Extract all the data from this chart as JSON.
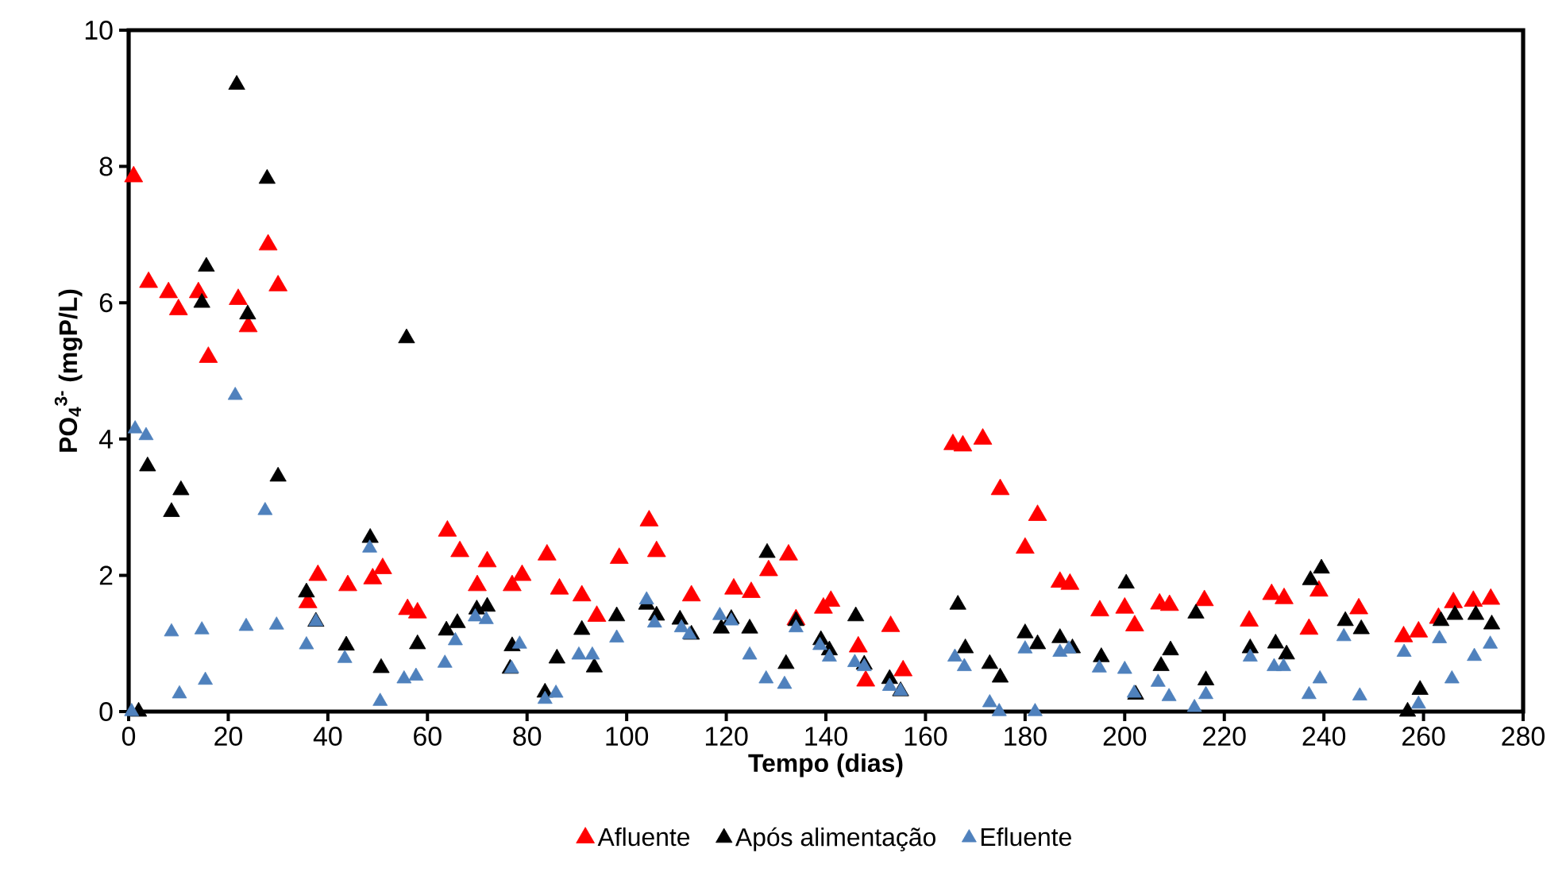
{
  "chart_data": {
    "type": "scatter",
    "xlabel": "Tempo (dias)",
    "ylabel": "PO$_{4}$$^{3-}$ (mgP/L)",
    "xlim": [
      0,
      280
    ],
    "ylim": [
      0,
      10
    ],
    "xticks": [
      0,
      20,
      40,
      60,
      80,
      100,
      120,
      140,
      160,
      180,
      200,
      220,
      240,
      260,
      280
    ],
    "yticks": [
      0,
      2,
      4,
      6,
      8,
      10
    ],
    "marker": "triangle",
    "legend": "bottom",
    "grid": false,
    "series": [
      {
        "name": "Afluente",
        "color": "#ff0000",
        "x": [
          1,
          4,
          8,
          10,
          14,
          16,
          22,
          24,
          28,
          30,
          36,
          38,
          44,
          49,
          51,
          56,
          58,
          64,
          66.5,
          70,
          72,
          77,
          79,
          84,
          86.5,
          91,
          94,
          98.5,
          104.5,
          106,
          113,
          121.5,
          125,
          128.5,
          132.5,
          134,
          139.5,
          141,
          146.5,
          148,
          153,
          155.5,
          165.5,
          167.5,
          171.5,
          175,
          180,
          182.5,
          187,
          189,
          195,
          200,
          202,
          207,
          209,
          216,
          225,
          229.5,
          232,
          237,
          239,
          247,
          256,
          259,
          263,
          266,
          270,
          273.5
        ],
        "values": [
          7.85,
          6.3,
          6.15,
          5.9,
          6.15,
          5.2,
          6.05,
          5.65,
          6.85,
          6.25,
          1.6,
          2.0,
          1.85,
          1.95,
          2.1,
          1.5,
          1.45,
          2.65,
          2.35,
          1.85,
          2.2,
          1.85,
          2.0,
          2.3,
          1.8,
          1.7,
          1.4,
          2.25,
          2.8,
          2.35,
          1.7,
          1.8,
          1.75,
          2.07,
          2.3,
          1.35,
          1.52,
          1.62,
          0.95,
          0.45,
          1.25,
          0.6,
          3.92,
          3.9,
          4.0,
          3.26,
          2.4,
          2.88,
          1.9,
          1.87,
          1.48,
          1.52,
          1.26,
          1.58,
          1.56,
          1.63,
          1.33,
          1.72,
          1.66,
          1.21,
          1.77,
          1.51,
          1.1,
          1.17,
          1.37,
          1.6,
          1.62,
          1.65
        ]
      },
      {
        "name": "Após alimentação",
        "color": "#000000",
        "x": [
          2,
          3.8,
          8.6,
          10.5,
          14.7,
          15.6,
          21.7,
          23.9,
          27.8,
          30,
          35.7,
          37.6,
          43.7,
          48.5,
          50.7,
          55.8,
          58,
          63.8,
          66,
          69.9,
          72,
          76.6,
          77,
          83.6,
          86,
          91,
          93.5,
          98,
          104,
          106,
          110.7,
          113,
          119,
          121,
          124.7,
          128.2,
          132,
          134,
          139,
          140.7,
          146,
          147.7,
          152.8,
          155,
          166.5,
          168,
          172.9,
          175,
          180,
          182.5,
          187,
          189.5,
          195.3,
          200.3,
          202.2,
          207.3,
          209.2,
          214.3,
          216.3,
          225.2,
          230.3,
          232.5,
          237.3,
          239.5,
          244.3,
          247.5,
          256.8,
          259.3,
          263.5,
          266.3,
          270.5,
          273.7
        ],
        "values": [
          0.0,
          3.6,
          2.93,
          3.25,
          6.0,
          6.53,
          9.2,
          5.83,
          7.82,
          3.45,
          1.75,
          1.32,
          0.97,
          2.55,
          0.64,
          5.48,
          0.99,
          1.19,
          1.3,
          1.5,
          1.54,
          0.63,
          0.96,
          0.28,
          0.78,
          1.2,
          0.65,
          1.4,
          1.57,
          1.41,
          1.35,
          1.13,
          1.22,
          1.36,
          1.22,
          2.33,
          0.7,
          1.33,
          1.05,
          0.9,
          1.4,
          0.69,
          0.48,
          0.3,
          1.57,
          0.93,
          0.7,
          0.5,
          1.15,
          0.99,
          1.08,
          0.93,
          0.8,
          1.88,
          0.25,
          0.67,
          0.9,
          1.44,
          0.46,
          0.93,
          1.0,
          0.84,
          1.93,
          2.1,
          1.33,
          1.21,
          0.0,
          0.32,
          1.33,
          1.42,
          1.42,
          1.28
        ]
      },
      {
        "name": "Efluente",
        "color": "#4f81bd",
        "x": [
          0.6,
          1.3,
          3.5,
          8.6,
          10.2,
          14.7,
          15.4,
          21.4,
          23.6,
          27.4,
          29.7,
          35.7,
          37.6,
          43.4,
          48.4,
          50.5,
          55.3,
          57.7,
          63.5,
          65.6,
          69.6,
          71.8,
          76.9,
          78.5,
          83.6,
          85.8,
          90.4,
          93.1,
          98,
          104,
          105.6,
          111,
          112.6,
          118.7,
          121,
          124.7,
          128,
          131.7,
          134,
          138.8,
          140.7,
          145.8,
          147.7,
          152.8,
          155,
          165.9,
          167.8,
          172.9,
          174.8,
          180,
          182,
          187,
          188.8,
          194.9,
          200,
          201.9,
          206.7,
          208.9,
          214,
          216.3,
          225.2,
          230,
          231.9,
          237,
          239.2,
          244,
          247.2,
          256.1,
          259,
          263.2,
          265.7,
          270.2,
          273.4
        ],
        "values": [
          0.0,
          4.15,
          4.05,
          1.17,
          0.26,
          1.2,
          0.46,
          4.64,
          1.25,
          2.95,
          1.27,
          0.98,
          1.32,
          0.78,
          2.4,
          0.15,
          0.48,
          0.52,
          0.71,
          1.04,
          1.39,
          1.35,
          0.63,
          0.99,
          0.18,
          0.27,
          0.83,
          0.83,
          1.08,
          1.64,
          1.3,
          1.23,
          1.13,
          1.41,
          1.33,
          0.83,
          0.48,
          0.4,
          1.23,
          0.97,
          0.8,
          0.72,
          0.66,
          0.37,
          0.3,
          0.8,
          0.66,
          0.13,
          0.0,
          0.92,
          0.0,
          0.87,
          0.92,
          0.64,
          0.62,
          0.27,
          0.43,
          0.22,
          0.06,
          0.25,
          0.8,
          0.66,
          0.66,
          0.25,
          0.48,
          1.1,
          0.23,
          0.87,
          0.11,
          1.07,
          0.48,
          0.81,
          0.99
        ]
      }
    ]
  }
}
